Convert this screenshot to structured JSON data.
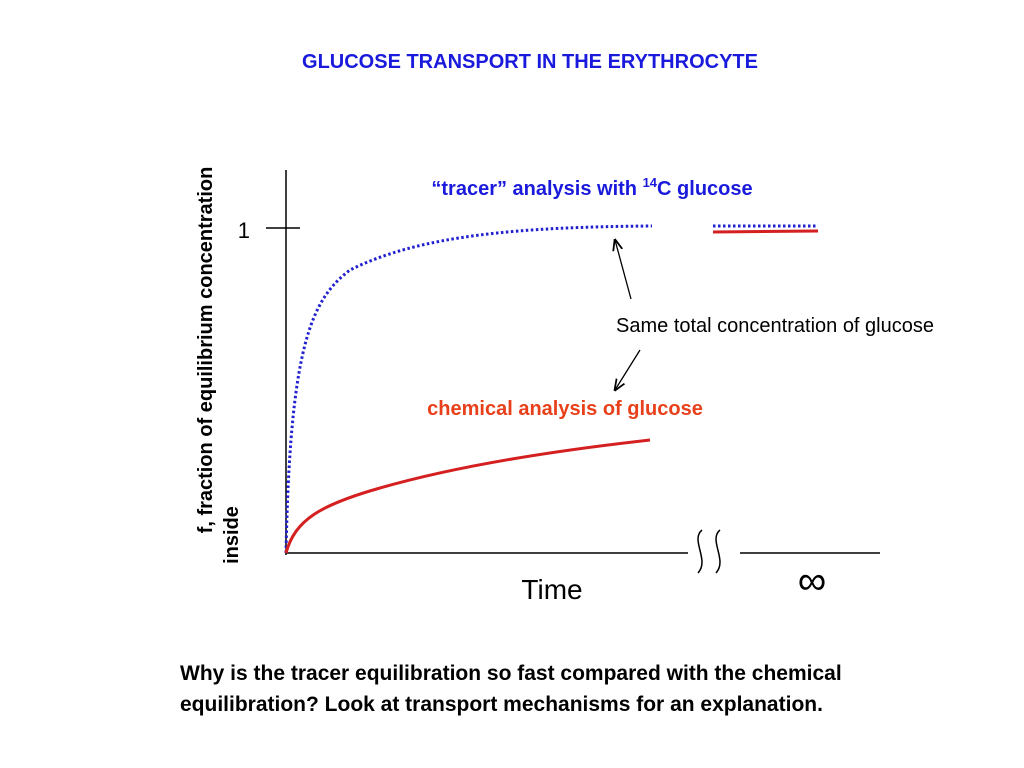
{
  "header": {
    "title": "GLUCOSE TRANSPORT IN THE ERYTHROCYTE"
  },
  "diagram": {
    "y_axis_label": [
      "f, fraction of equilibrium concentration",
      "inside"
    ],
    "y_tick": "1",
    "x_axis_label": "Time",
    "x_end_label": "∞",
    "tracer_label": {
      "before": "“tracer” analysis with ",
      "superscript": "14",
      "after": "C glucose"
    },
    "chemical_label": "chemical analysis of glucose",
    "note": "Same total concentration of glucose"
  },
  "question": "Why is the tracer equilibration so fast compared with the chemical equilibration? Look at transport mechanisms for an explanation."
}
